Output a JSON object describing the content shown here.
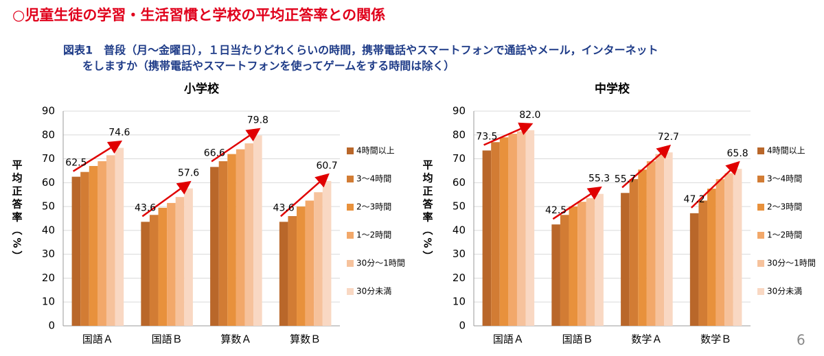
{
  "slide": {
    "title": "○児童生徒の学習・生活習慣と学校の平均正答率との関係",
    "subtitle_line1": "図表1　普段（月～金曜日），１日当たりどれくらいの時間，携帯電話やスマートフォンで通話やメール，インターネット",
    "subtitle_line2": "をしますか（携帯電話やスマートフォンを使ってゲームをする時間は除く）",
    "page_number": "6"
  },
  "chart_data": [
    {
      "type": "bar",
      "title": "小学校",
      "y_label": "平均正答率（%）",
      "categories": [
        "国語Ａ",
        "国語Ｂ",
        "算数Ａ",
        "算数Ｂ"
      ],
      "ylim": [
        0,
        90
      ],
      "yticks": [
        0,
        10,
        20,
        30,
        40,
        50,
        60,
        70,
        80,
        90
      ],
      "grid": true,
      "legend": "right",
      "series": [
        {
          "name": "4時間以上",
          "color": "#b9672a",
          "values": [
            62.5,
            43.6,
            66.6,
            43.6
          ],
          "value_labels": [
            "62.5",
            "43.6",
            "66.6",
            "43.6"
          ]
        },
        {
          "name": "3～4時間",
          "color": "#d27c34",
          "values": [
            64.5,
            46.5,
            69,
            46
          ]
        },
        {
          "name": "2～3時間",
          "color": "#e8913c",
          "values": [
            67,
            49.5,
            72,
            50
          ]
        },
        {
          "name": "1～2時間",
          "color": "#f2a86a",
          "values": [
            69,
            51.5,
            74,
            52.5
          ]
        },
        {
          "name": "30分～1時間",
          "color": "#f6c29c",
          "values": [
            71.5,
            54,
            76.5,
            56
          ]
        },
        {
          "name": "30分未満",
          "color": "#f9d8c3",
          "values": [
            74.6,
            57.6,
            79.8,
            60.7
          ],
          "value_labels": [
            "74.6",
            "57.6",
            "79.8",
            "60.7"
          ]
        }
      ]
    },
    {
      "type": "bar",
      "title": "中学校",
      "y_label": "平均正答率（%）",
      "categories": [
        "国語Ａ",
        "国語Ｂ",
        "数学Ａ",
        "数学Ｂ"
      ],
      "ylim": [
        0,
        90
      ],
      "yticks": [
        0,
        10,
        20,
        30,
        40,
        50,
        60,
        70,
        80,
        90
      ],
      "grid": true,
      "legend": "right",
      "series": [
        {
          "name": "4時間以上",
          "color": "#b9672a",
          "values": [
            73.5,
            42.5,
            55.7,
            47.2
          ],
          "value_labels": [
            "73.5",
            "42.5",
            "55.7",
            "47.2"
          ]
        },
        {
          "name": "3～4時間",
          "color": "#d27c34",
          "values": [
            77,
            46.5,
            61.5,
            52.5
          ]
        },
        {
          "name": "2～3時間",
          "color": "#e8913c",
          "values": [
            79,
            50,
            65.5,
            57.5
          ]
        },
        {
          "name": "1～2時間",
          "color": "#f2a86a",
          "values": [
            80.5,
            52,
            69,
            61.5
          ]
        },
        {
          "name": "30分～1時間",
          "color": "#f6c29c",
          "values": [
            81.5,
            53.5,
            72,
            64
          ]
        },
        {
          "name": "30分未満",
          "color": "#f9d8c3",
          "values": [
            82,
            55.3,
            72.7,
            65.8
          ],
          "value_labels": [
            "82.0",
            "55.3",
            "72.7",
            "65.8"
          ]
        }
      ]
    }
  ]
}
